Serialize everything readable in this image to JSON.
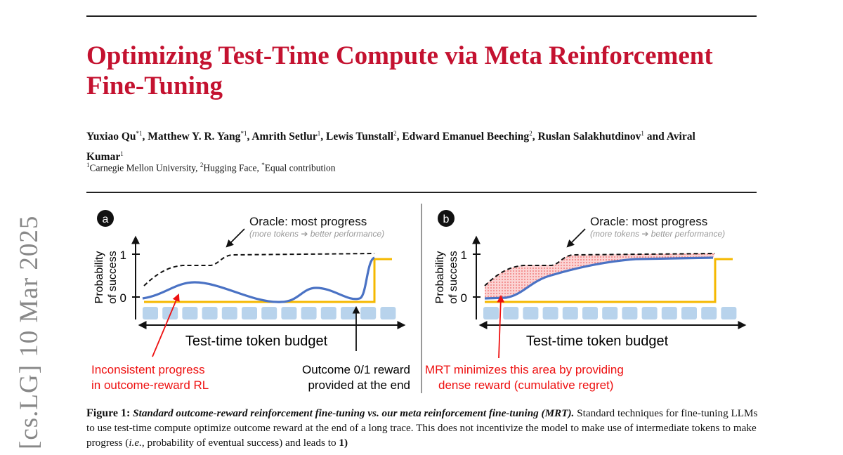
{
  "title": "Optimizing Test-Time Compute via Meta Reinforcement Fine-Tuning",
  "authors": [
    {
      "name": "Yuxiao Qu",
      "sup": "*1"
    },
    {
      "name": "Matthew Y. R. Yang",
      "sup": "*1"
    },
    {
      "name": "Amrith Setlur",
      "sup": "1"
    },
    {
      "name": "Lewis Tunstall",
      "sup": "2"
    },
    {
      "name": "Edward Emanuel Beeching",
      "sup": "2"
    },
    {
      "name": "Ruslan Salakhutdinov",
      "sup": "1"
    },
    {
      "name": "Aviral Kumar",
      "sup": "1"
    }
  ],
  "affiliations": [
    {
      "sup": "1",
      "text": "Carnegie Mellon University, "
    },
    {
      "sup": "2",
      "text": "Hugging Face, "
    },
    {
      "sup": "*",
      "text": "Equal contribution"
    }
  ],
  "arxiv_stamp": "[cs.LG]  10 Mar 2025",
  "figure": {
    "panel_a": {
      "badge": "a",
      "oracle": "Oracle: most progress",
      "oracle_sub": "(more tokens ➔ better performance)",
      "ylabel1": "Probability",
      "ylabel2": "of success",
      "tick1": "1",
      "tick0": "0",
      "xlabel": "Test-time token budget",
      "red_note1": "Inconsistent progress",
      "red_note2": "in outcome-reward RL",
      "black_note1": "Outcome 0/1 reward",
      "black_note2": "provided at the end"
    },
    "panel_b": {
      "badge": "b",
      "oracle": "Oracle: most progress",
      "oracle_sub": "(more tokens ➔ better performance)",
      "ylabel1": "Probability",
      "ylabel2": "of success",
      "tick1": "1",
      "tick0": "0",
      "xlabel": "Test-time token budget",
      "red_note1": "MRT minimizes this area by providing",
      "red_note2": "dense reward (cumulative regret)"
    },
    "colors": {
      "progress_curve": "#4a72c4",
      "outcome_reward": "#f5b800",
      "token_block": "#b8d3ec",
      "annotation": "#ee1111",
      "title": "#c41230"
    }
  },
  "caption": {
    "label": "Figure 1:",
    "bold_italic": "Standard outcome-reward reinforcement fine-tuning vs. our meta reinforcement fine-tuning (MRT).",
    "text_1": " Standard techniques for fine-tuning LLMs to use test-time compute optimize outcome reward at the end of a long trace. This does not incentivize the model to make use of intermediate tokens to make progress (",
    "ie": "i.e.",
    "text_2": ", probability of eventual success) and leads to ",
    "tail": "1)"
  }
}
